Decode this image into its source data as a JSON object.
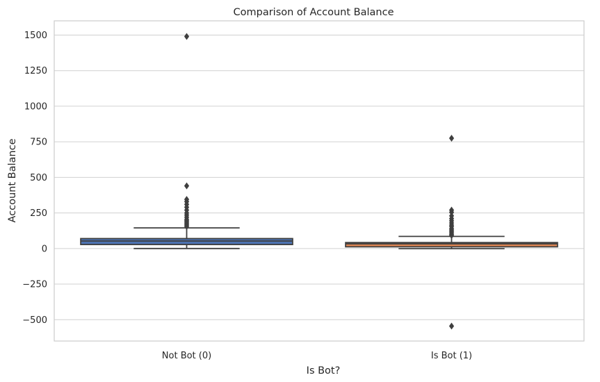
{
  "chart_data": {
    "type": "box",
    "title": "Comparison of Account Balance",
    "xlabel": "Is Bot?",
    "ylabel": "Account Balance",
    "ylim": [
      -650,
      1600
    ],
    "yticks": [
      -500,
      -250,
      0,
      250,
      500,
      750,
      1000,
      1250,
      1500
    ],
    "ytick_labels": [
      "−500",
      "−250",
      "0",
      "250",
      "500",
      "750",
      "1000",
      "1250",
      "1500"
    ],
    "grid": true,
    "categories": [
      "Not Bot (0)",
      "Is Bot (1)"
    ],
    "boxes": [
      {
        "category": "Not Bot (0)",
        "color": "#4c72b0",
        "whisker_low": 0,
        "q1": 28,
        "median": 53,
        "q3": 70,
        "whisker_high": 145,
        "outliers": [
          1490,
          440,
          345,
          330,
          310,
          290,
          270,
          250,
          235,
          220,
          205,
          195,
          185,
          175,
          165,
          155
        ]
      },
      {
        "category": "Is Bot (1)",
        "color": "#dd8452",
        "whisker_low": -1,
        "q1": 12,
        "median": 33,
        "q3": 42,
        "whisker_high": 85,
        "outliers": [
          775,
          270,
          255,
          230,
          210,
          195,
          180,
          165,
          155,
          140,
          130,
          120,
          110,
          100,
          92,
          -545
        ]
      }
    ]
  }
}
